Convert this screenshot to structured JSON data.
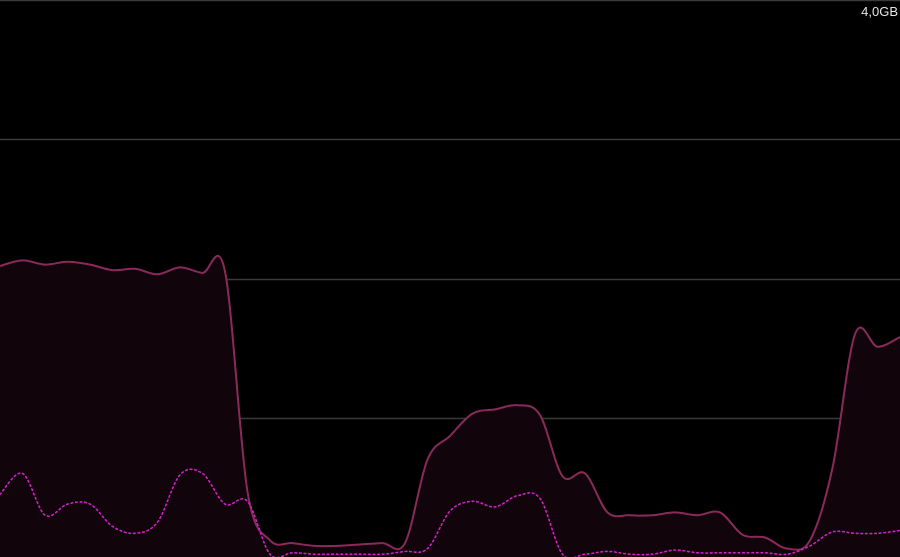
{
  "memory_graph": {
    "scale_max_label": "4,0GB",
    "colors": {
      "background": "#000000",
      "gridline": "#3a3a3a",
      "solid_line": "#8a2a5a",
      "area_fill": "#12040b",
      "dotted_line": "#d11fc7"
    }
  },
  "chart_data": {
    "type": "area",
    "ylim": [
      0,
      4.0
    ],
    "y_unit": "GB",
    "grid": true,
    "series": [
      {
        "style": "solid",
        "values": [
          2.09,
          2.13,
          2.1,
          2.12,
          2.1,
          2.06,
          2.07,
          2.03,
          2.08,
          2.04,
          2.05,
          0.47,
          0.12,
          0.1,
          0.08,
          0.08,
          0.09,
          0.1,
          0.1,
          0.7,
          0.87,
          1.03,
          1.06,
          1.09,
          1.02,
          0.58,
          0.6,
          0.32,
          0.3,
          0.3,
          0.32,
          0.3,
          0.32,
          0.16,
          0.14,
          0.06,
          0.12,
          0.64,
          1.6,
          1.51,
          1.58
        ]
      },
      {
        "style": "dotted",
        "values": [
          0.45,
          0.6,
          0.3,
          0.38,
          0.38,
          0.22,
          0.17,
          0.25,
          0.59,
          0.6,
          0.38,
          0.4,
          0.02,
          0.03,
          0.02,
          0.02,
          0.02,
          0.02,
          0.04,
          0.06,
          0.33,
          0.4,
          0.36,
          0.44,
          0.42,
          0.02,
          0.02,
          0.04,
          0.02,
          0.02,
          0.05,
          0.03,
          0.03,
          0.03,
          0.03,
          0.02,
          0.08,
          0.18,
          0.17,
          0.17,
          0.19
        ]
      }
    ]
  }
}
